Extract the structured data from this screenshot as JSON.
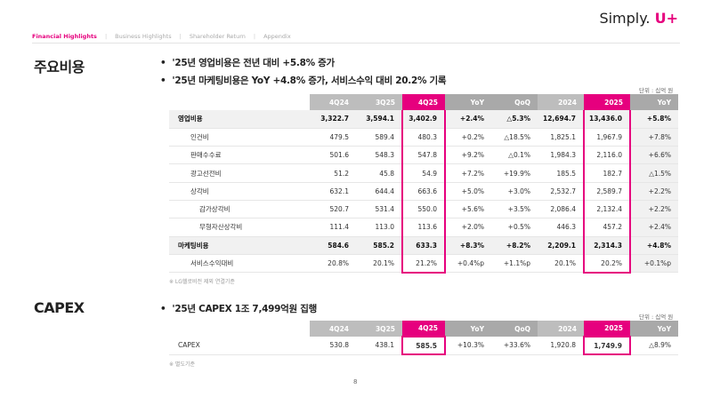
{
  "nav": {
    "items": [
      "Financial Highlights",
      "Business Highlights",
      "Shareholder Return",
      "Appendix"
    ],
    "separator": "|"
  },
  "logo": {
    "text": "Simply.",
    "plus": "U+"
  },
  "section1": {
    "title": "주요비용",
    "bullets": [
      "'25년 영업비용은 전년 대비 +5.8% 증가",
      "'25년 마케팅비용은 YoY +4.8% 증가, 서비스수익 대비 20.2% 기록"
    ],
    "unit": "단위 : 십억 원",
    "headers": [
      "",
      "4Q24",
      "3Q25",
      "4Q25",
      "YoY",
      "QoQ",
      "2024",
      "2025",
      "YoY"
    ],
    "rows": [
      {
        "label": "영업비용",
        "values": [
          "3,322.7",
          "3,594.1",
          "3,402.9",
          "+2.4%",
          "△5.3%",
          "12,694.7",
          "13,436.0",
          "+5.8%"
        ]
      },
      {
        "label": "인건비",
        "values": [
          "479.5",
          "589.4",
          "480.3",
          "+0.2%",
          "△18.5%",
          "1,825.1",
          "1,967.9",
          "+7.8%"
        ]
      },
      {
        "label": "판매수수료",
        "values": [
          "501.6",
          "548.3",
          "547.8",
          "+9.2%",
          "△0.1%",
          "1,984.3",
          "2,116.0",
          "+6.6%"
        ]
      },
      {
        "label": "광고선전비",
        "values": [
          "51.2",
          "45.8",
          "54.9",
          "+7.2%",
          "+19.9%",
          "185.5",
          "182.7",
          "△1.5%"
        ]
      },
      {
        "label": "상각비",
        "values": [
          "632.1",
          "644.4",
          "663.6",
          "+5.0%",
          "+3.0%",
          "2,532.7",
          "2,589.7",
          "+2.2%"
        ]
      },
      {
        "label": "감가상각비",
        "values": [
          "520.7",
          "531.4",
          "550.0",
          "+5.6%",
          "+3.5%",
          "2,086.4",
          "2,132.4",
          "+2.2%"
        ]
      },
      {
        "label": "무형자산상각비",
        "values": [
          "111.4",
          "113.0",
          "113.6",
          "+2.0%",
          "+0.5%",
          "446.3",
          "457.2",
          "+2.4%"
        ]
      },
      {
        "label": "마케팅비용",
        "values": [
          "584.6",
          "585.2",
          "633.3",
          "+8.3%",
          "+8.2%",
          "2,209.1",
          "2,314.3",
          "+4.8%"
        ]
      },
      {
        "label": "서비스수익대비",
        "values": [
          "20.8%",
          "20.1%",
          "21.2%",
          "+0.4%p",
          "+1.1%p",
          "20.1%",
          "20.2%",
          "+0.1%p"
        ]
      }
    ],
    "footnote": "※ LG헬로비전 제외 연결기준"
  },
  "section2": {
    "title": "CAPEX",
    "bullets": [
      "'25년 CAPEX 1조 7,499억원 집행"
    ],
    "unit": "단위 : 십억 원",
    "headers": [
      "",
      "4Q24",
      "3Q25",
      "4Q25",
      "YoY",
      "QoQ",
      "2024",
      "2025",
      "YoY"
    ],
    "rows": [
      {
        "label": "CAPEX",
        "values": [
          "530.8",
          "438.1",
          "585.5",
          "+10.3%",
          "+33.6%",
          "1,920.8",
          "1,749.9",
          "△8.9%"
        ]
      }
    ],
    "footnote": "※ 별도기준"
  },
  "page_number": "8",
  "colors": {
    "accent": "#e6007e",
    "header_gray": "#8c8c8c",
    "highlight_row": "#f1f1f1"
  }
}
